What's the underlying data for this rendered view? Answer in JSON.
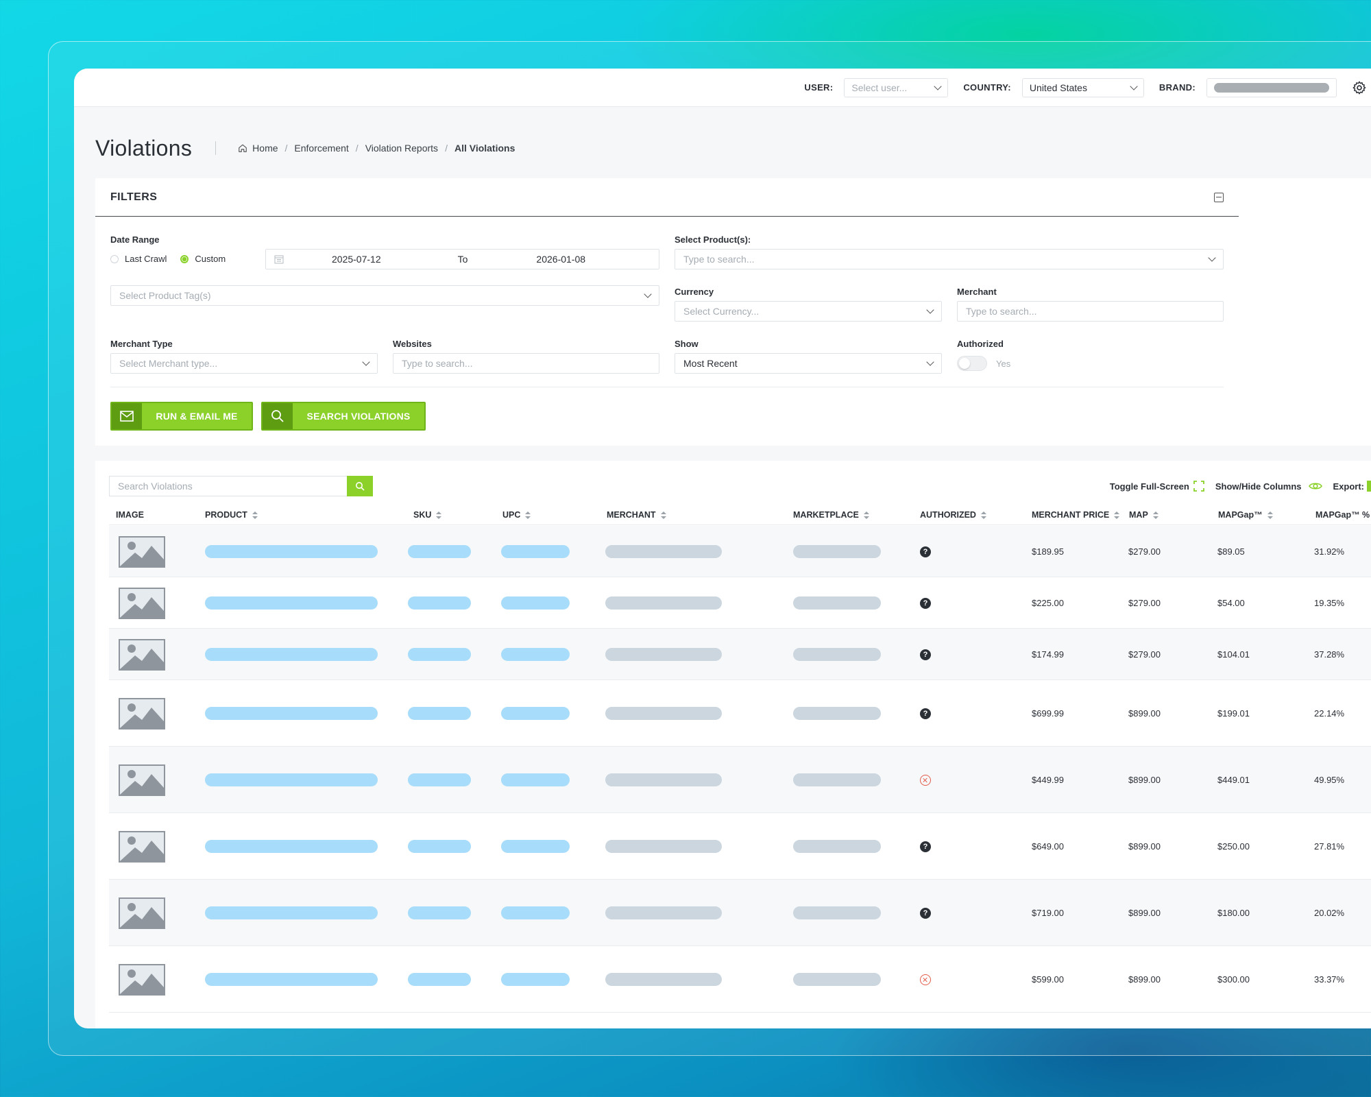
{
  "topbar": {
    "user_label": "USER:",
    "user_placeholder": "Select user...",
    "country_label": "COUNTRY:",
    "country_value": "United States",
    "brand_label": "BRAND:"
  },
  "header": {
    "title": "Violations",
    "breadcrumbs": [
      "Home",
      "Enforcement",
      "Violation Reports",
      "All Violations"
    ]
  },
  "filters": {
    "title": "FILTERS",
    "date_range_label": "Date Range",
    "last_crawl_label": "Last Crawl",
    "custom_label": "Custom",
    "date_from": "2025-07-12",
    "to_label": "To",
    "date_to": "2026-01-08",
    "product_tags_placeholder": "Select Product Tag(s)",
    "products_label": "Select Product(s):",
    "products_placeholder": "Type to search...",
    "currency_label": "Currency",
    "currency_placeholder": "Select Currency...",
    "merchant_label": "Merchant",
    "merchant_placeholder": "Type to search...",
    "merchant_type_label": "Merchant Type",
    "merchant_type_placeholder": "Select Merchant type...",
    "websites_label": "Websites",
    "websites_placeholder": "Type to search...",
    "show_label": "Show",
    "show_value": "Most Recent",
    "authorized_label": "Authorized",
    "authorized_toggle_label": "Yes",
    "run_email_label": "RUN & EMAIL ME",
    "search_violations_label": "SEARCH VIOLATIONS"
  },
  "table": {
    "search_placeholder": "Search Violations",
    "toggle_fullscreen_label": "Toggle Full-Screen",
    "show_hide_label": "Show/Hide Columns",
    "export_label": "Export:",
    "columns": [
      "IMAGE",
      "PRODUCT",
      "SKU",
      "UPC",
      "MERCHANT",
      "MARKETPLACE",
      "AUTHORIZED",
      "MERCHANT PRICE",
      "MAP",
      "MAPGap™",
      "MAPGap™ %"
    ],
    "rows": [
      {
        "authorized": "unknown",
        "merchant_price": "$189.95",
        "map": "$279.00",
        "gap": "$89.05",
        "gap_pct": "31.92%"
      },
      {
        "authorized": "unknown",
        "merchant_price": "$225.00",
        "map": "$279.00",
        "gap": "$54.00",
        "gap_pct": "19.35%"
      },
      {
        "authorized": "unknown",
        "merchant_price": "$174.99",
        "map": "$279.00",
        "gap": "$104.01",
        "gap_pct": "37.28%"
      },
      {
        "authorized": "unknown",
        "merchant_price": "$699.99",
        "map": "$899.00",
        "gap": "$199.01",
        "gap_pct": "22.14%"
      },
      {
        "authorized": "no",
        "merchant_price": "$449.99",
        "map": "$899.00",
        "gap": "$449.01",
        "gap_pct": "49.95%"
      },
      {
        "authorized": "unknown",
        "merchant_price": "$649.00",
        "map": "$899.00",
        "gap": "$250.00",
        "gap_pct": "27.81%"
      },
      {
        "authorized": "unknown",
        "merchant_price": "$719.00",
        "map": "$899.00",
        "gap": "$180.00",
        "gap_pct": "20.02%"
      },
      {
        "authorized": "no",
        "merchant_price": "$599.00",
        "map": "$899.00",
        "gap": "$300.00",
        "gap_pct": "33.37%"
      }
    ]
  },
  "colors": {
    "accent_green": "#8bd12a",
    "placeholder_blue": "#a7dcfa",
    "placeholder_grey": "#cbd6df",
    "unauthorized_red": "#e35b4a"
  }
}
